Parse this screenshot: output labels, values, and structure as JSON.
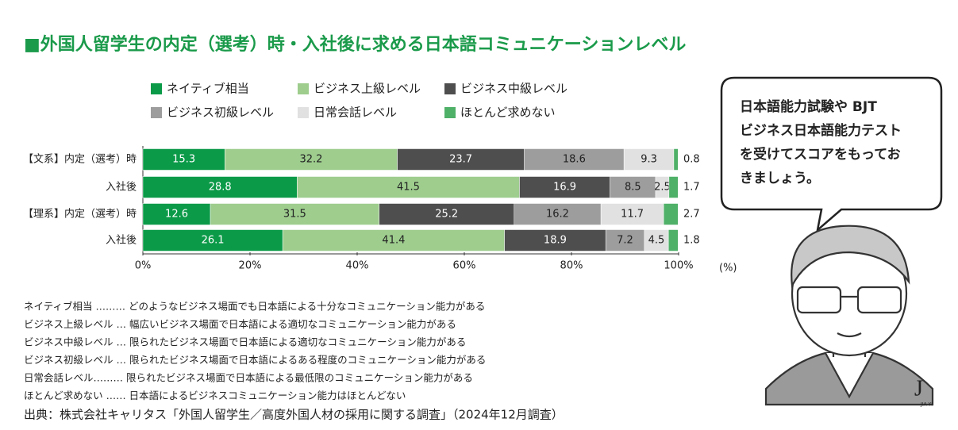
{
  "chart_data": {
    "type": "bar",
    "orientation": "horizontal",
    "stacked": true,
    "title": "■外国人留学生の内定（選考）時・入社後に求める日本語コミュニケーションレベル",
    "unit": "(%)",
    "categories": [
      "【文系】内定（選考）時",
      "入社後",
      "【理系】内定（選考）時",
      "入社後"
    ],
    "series": [
      {
        "name": "ネイティブ相当",
        "color": "#0b9a48",
        "values": [
          15.3,
          28.8,
          12.6,
          26.1
        ]
      },
      {
        "name": "ビジネス上級レベル",
        "color": "#9ecd8e",
        "values": [
          32.2,
          41.5,
          31.5,
          41.4
        ]
      },
      {
        "name": "ビジネス中級レベル",
        "color": "#4e4e4e",
        "values": [
          23.7,
          16.9,
          25.2,
          18.9
        ]
      },
      {
        "name": "ビジネス初級レベル",
        "color": "#9d9d9d",
        "values": [
          18.6,
          8.5,
          16.2,
          7.2
        ]
      },
      {
        "name": "日常会話レベル",
        "color": "#e1e1e1",
        "values": [
          9.3,
          2.5,
          11.7,
          4.5
        ]
      },
      {
        "name": "ほとんど求めない",
        "color": "#4fb068",
        "values": [
          0.8,
          1.7,
          2.7,
          1.8
        ]
      }
    ],
    "xlim": [
      0,
      100
    ],
    "xticks": [
      {
        "value": 0,
        "label": "0%"
      },
      {
        "value": 20,
        "label": "20%"
      },
      {
        "value": 40,
        "label": "40%"
      },
      {
        "value": 60,
        "label": "60%"
      },
      {
        "value": 80,
        "label": "80%"
      },
      {
        "value": 100,
        "label": "100%"
      }
    ]
  },
  "notes": [
    "ネイティブ相当 ……… どのようなビジネス場面でも日本語による十分なコミュニケーション能力がある",
    "ビジネス上級レベル … 幅広いビジネス場面で日本語による適切なコミュニケーション能力がある",
    "ビジネス中級レベル … 限られたビジネス場面で日本語による適切なコミュニケーション能力がある",
    "ビジネス初級レベル … 限られたビジネス場面で日本語によるある程度のコミュニケーション能力がある",
    "日常会話レベル……… 限られたビジネス場面で日本語による最低限のコミュニケーション能力がある",
    "ほとんど求めない …… 日本語によるビジネスコミュニケーション能力はほとんどない"
  ],
  "source": "出典：株式会社キャリタス「外国人留学生／高度外国人材の採用に関する調査」（2024年12月調査）",
  "bubble": [
    "日本語能力試験や BJT",
    "ビジネス日本語能力テスト",
    "を受けてスコアをもってお",
    "きましょう。"
  ],
  "logo": {
    "mark": "J",
    "text": "JIA YI"
  }
}
